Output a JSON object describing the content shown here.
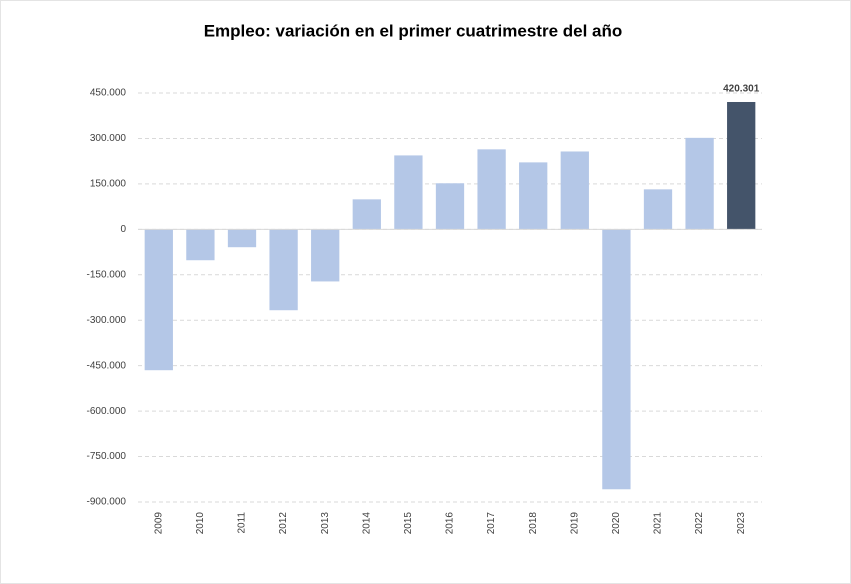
{
  "chart_data": {
    "type": "bar",
    "title": "Empleo: variación en el primer cuatrimestre del año",
    "categories": [
      "2009",
      "2010",
      "2011",
      "2012",
      "2013",
      "2014",
      "2015",
      "2016",
      "2017",
      "2018",
      "2019",
      "2020",
      "2021",
      "2022",
      "2023"
    ],
    "values": [
      -465000,
      -102000,
      -59000,
      -267000,
      -172000,
      99000,
      244000,
      152000,
      264000,
      221000,
      257000,
      -858000,
      132000,
      302000,
      420301
    ],
    "value_labels": [
      null,
      null,
      null,
      null,
      null,
      null,
      null,
      null,
      null,
      null,
      null,
      null,
      null,
      null,
      "420.301"
    ],
    "colors": [
      "#b4c7e7",
      "#b4c7e7",
      "#b4c7e7",
      "#b4c7e7",
      "#b4c7e7",
      "#b4c7e7",
      "#b4c7e7",
      "#b4c7e7",
      "#b4c7e7",
      "#b4c7e7",
      "#b4c7e7",
      "#b4c7e7",
      "#b4c7e7",
      "#b4c7e7",
      "#44546a"
    ],
    "ylim": [
      -900000,
      450000
    ],
    "yticks": [
      {
        "value": 450000,
        "label": "450.000"
      },
      {
        "value": 300000,
        "label": "300.000"
      },
      {
        "value": 150000,
        "label": "150.000"
      },
      0,
      {
        "value": -150000,
        "label": "-150.000"
      },
      {
        "value": -300000,
        "label": "-300.000"
      },
      {
        "value": -450000,
        "label": "-450.000"
      },
      {
        "value": -600000,
        "label": "-600.000"
      },
      {
        "value": -750000,
        "label": "-750.000"
      },
      {
        "value": -900000,
        "label": "-900.000"
      }
    ],
    "grid": true
  }
}
